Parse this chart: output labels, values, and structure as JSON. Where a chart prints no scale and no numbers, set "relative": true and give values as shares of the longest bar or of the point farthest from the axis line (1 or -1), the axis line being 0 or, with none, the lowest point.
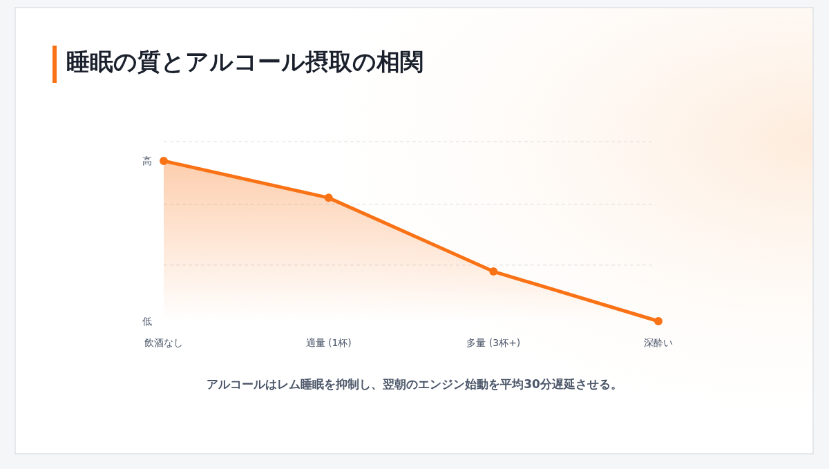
{
  "chart_data": {
    "type": "area",
    "title": "睡眠の質とアルコール摂取の相関",
    "categories": [
      "飲酒なし",
      "適量 (1杯)",
      "多量 (3杯+)",
      "深酔い"
    ],
    "series": [
      {
        "color": "#f97316",
        "values": [
          1,
          0.77,
          0.31,
          0
        ]
      }
    ],
    "relative": true,
    "marker": "circle",
    "line_style": "solid",
    "ref_lines": [
      {
        "axis": "y",
        "value": 1.12,
        "color": "#dcdcdc",
        "line_style": "dashed"
      },
      {
        "axis": "y",
        "value": 0.73,
        "color": "#dcdcdc",
        "line_style": "dashed"
      },
      {
        "axis": "y",
        "value": 0.35,
        "color": "#dcdcdc",
        "line_style": "dashed"
      }
    ],
    "annotations": [
      "高",
      "低",
      "アルコールはレム睡眠を抑制し、翌朝のエンジン始動を平均30分遅延させる。"
    ]
  }
}
